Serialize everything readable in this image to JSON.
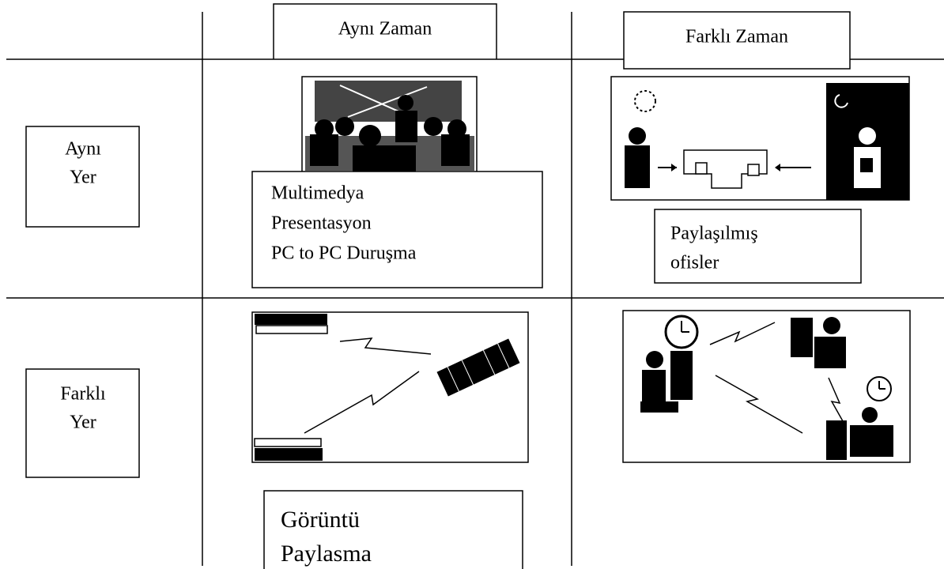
{
  "header": {
    "columns": [
      "Aynı Zaman",
      "Farklı Zaman"
    ]
  },
  "rows": [
    {
      "label": [
        "Aynı",
        "Yer"
      ]
    },
    {
      "label": [
        "Farklı",
        "Yer"
      ]
    }
  ],
  "captions": {
    "same_place_same_time": [
      "Multimedya",
      "Presentasyon",
      "PC to PC Duruşma"
    ],
    "same_place_different_time": [
      "Paylaşılmış",
      "ofisler"
    ],
    "different_place_same_time": [
      "Görüntü",
      "Paylasma"
    ]
  }
}
